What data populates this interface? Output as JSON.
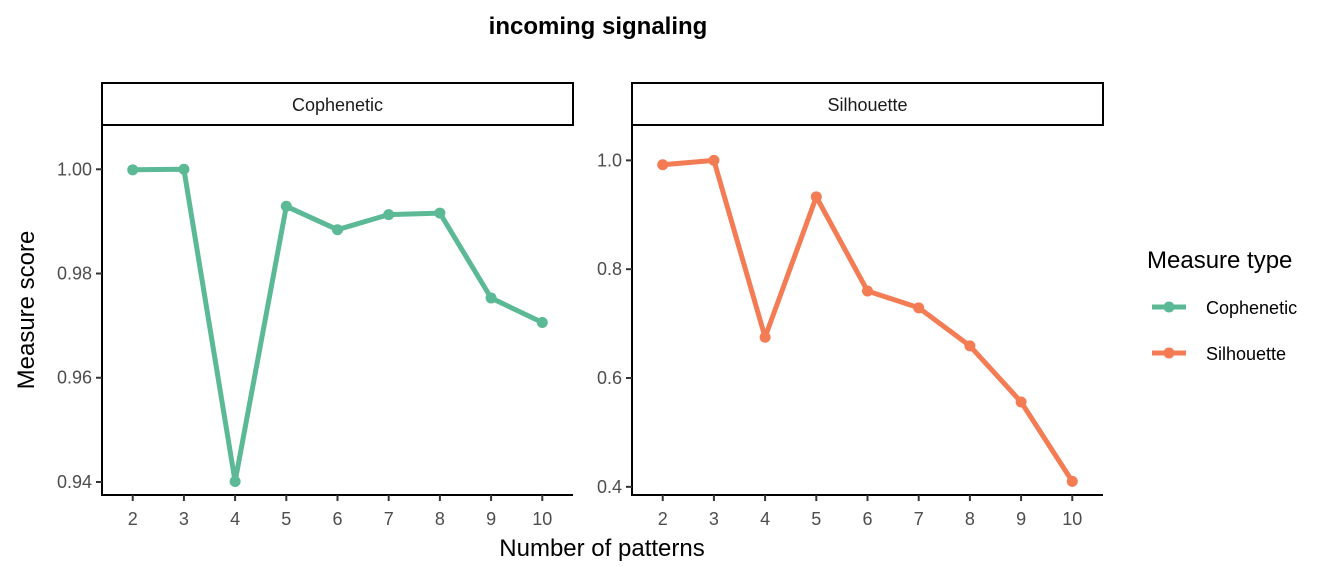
{
  "chart_data": {
    "type": "line",
    "title": "incoming signaling",
    "xlabel": "Number of patterns",
    "ylabel": "Measure score",
    "x": [
      2,
      3,
      4,
      5,
      6,
      7,
      8,
      9,
      10
    ],
    "legend": {
      "title": "Measure type",
      "position": "right",
      "entries": [
        {
          "name": "Cophenetic",
          "color": "#5BB996"
        },
        {
          "name": "Silhouette",
          "color": "#F47C55"
        }
      ]
    },
    "panels": [
      {
        "strip": "Cophenetic",
        "color": "#5BB996",
        "ylim": [
          0.9375,
          1.0085
        ],
        "yticks": [
          0.94,
          0.96,
          0.98,
          1.0
        ],
        "ytick_labels": [
          "0.94",
          "0.96",
          "0.98",
          "1.00"
        ],
        "values": [
          0.9999,
          1.0,
          0.9401,
          0.9929,
          0.9884,
          0.9913,
          0.9916,
          0.9753,
          0.9706
        ]
      },
      {
        "strip": "Silhouette",
        "color": "#F47C55",
        "ylim": [
          0.385,
          1.065
        ],
        "yticks": [
          0.4,
          0.6,
          0.8,
          1.0
        ],
        "ytick_labels": [
          "0.4",
          "0.6",
          "0.8",
          "1.0"
        ],
        "values": [
          0.992,
          1.0,
          0.675,
          0.933,
          0.76,
          0.729,
          0.659,
          0.556,
          0.41
        ]
      }
    ]
  }
}
